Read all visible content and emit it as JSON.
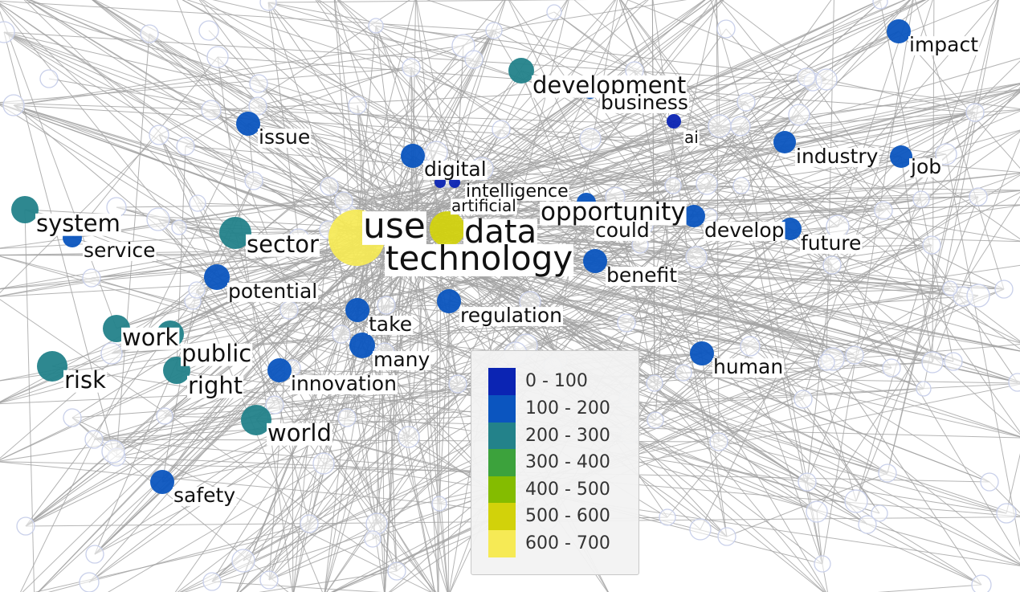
{
  "colors": {
    "edge": "#a3a3a3",
    "ghost_node": "#c9d0ea",
    "bin_0_100": "#0b24b3",
    "bin_100_200": "#0b55bf",
    "bin_200_300": "#23828a",
    "bin_300_400": "#3ca23c",
    "bin_400_500": "#84bc00",
    "bin_500_600": "#d2d20a",
    "bin_600_700": "#f6ea55"
  },
  "nodes": [
    {
      "label": "use",
      "bin": "600-700"
    },
    {
      "label": "data",
      "bin": "500-600"
    },
    {
      "label": "technology",
      "bin": "500-600"
    },
    {
      "label": "development",
      "bin": "200-300"
    },
    {
      "label": "business",
      "bin": "100-200"
    },
    {
      "label": "ai",
      "bin": "0-100"
    },
    {
      "label": "impact",
      "bin": "100-200"
    },
    {
      "label": "issue",
      "bin": "100-200"
    },
    {
      "label": "digital",
      "bin": "100-200"
    },
    {
      "label": "intelligence",
      "bin": "0-100"
    },
    {
      "label": "artificial",
      "bin": "0-100"
    },
    {
      "label": "opportunity",
      "bin": "100-200"
    },
    {
      "label": "could",
      "bin": "100-200"
    },
    {
      "label": "develop",
      "bin": "100-200"
    },
    {
      "label": "industry",
      "bin": "100-200"
    },
    {
      "label": "job",
      "bin": "100-200"
    },
    {
      "label": "future",
      "bin": "100-200"
    },
    {
      "label": "system",
      "bin": "200-300"
    },
    {
      "label": "service",
      "bin": "100-200"
    },
    {
      "label": "sector",
      "bin": "200-300"
    },
    {
      "label": "benefit",
      "bin": "100-200"
    },
    {
      "label": "potential",
      "bin": "100-200"
    },
    {
      "label": "take",
      "bin": "100-200"
    },
    {
      "label": "regulation",
      "bin": "100-200"
    },
    {
      "label": "work",
      "bin": "200-300"
    },
    {
      "label": "public",
      "bin": "200-300"
    },
    {
      "label": "many",
      "bin": "100-200"
    },
    {
      "label": "human",
      "bin": "100-200"
    },
    {
      "label": "risk",
      "bin": "200-300"
    },
    {
      "label": "right",
      "bin": "200-300"
    },
    {
      "label": "innovation",
      "bin": "100-200"
    },
    {
      "label": "world",
      "bin": "200-300"
    },
    {
      "label": "safety",
      "bin": "100-200"
    }
  ],
  "legend": {
    "items": [
      {
        "label": "0 - 100",
        "color": "#0b24b3"
      },
      {
        "label": "100 - 200",
        "color": "#0b55bf"
      },
      {
        "label": "200 - 300",
        "color": "#23828a"
      },
      {
        "label": "300 - 400",
        "color": "#3ca23c"
      },
      {
        "label": "400 - 500",
        "color": "#84bc00"
      },
      {
        "label": "500 - 600",
        "color": "#d2d20a"
      },
      {
        "label": "600 - 700",
        "color": "#f6ea55"
      }
    ]
  }
}
